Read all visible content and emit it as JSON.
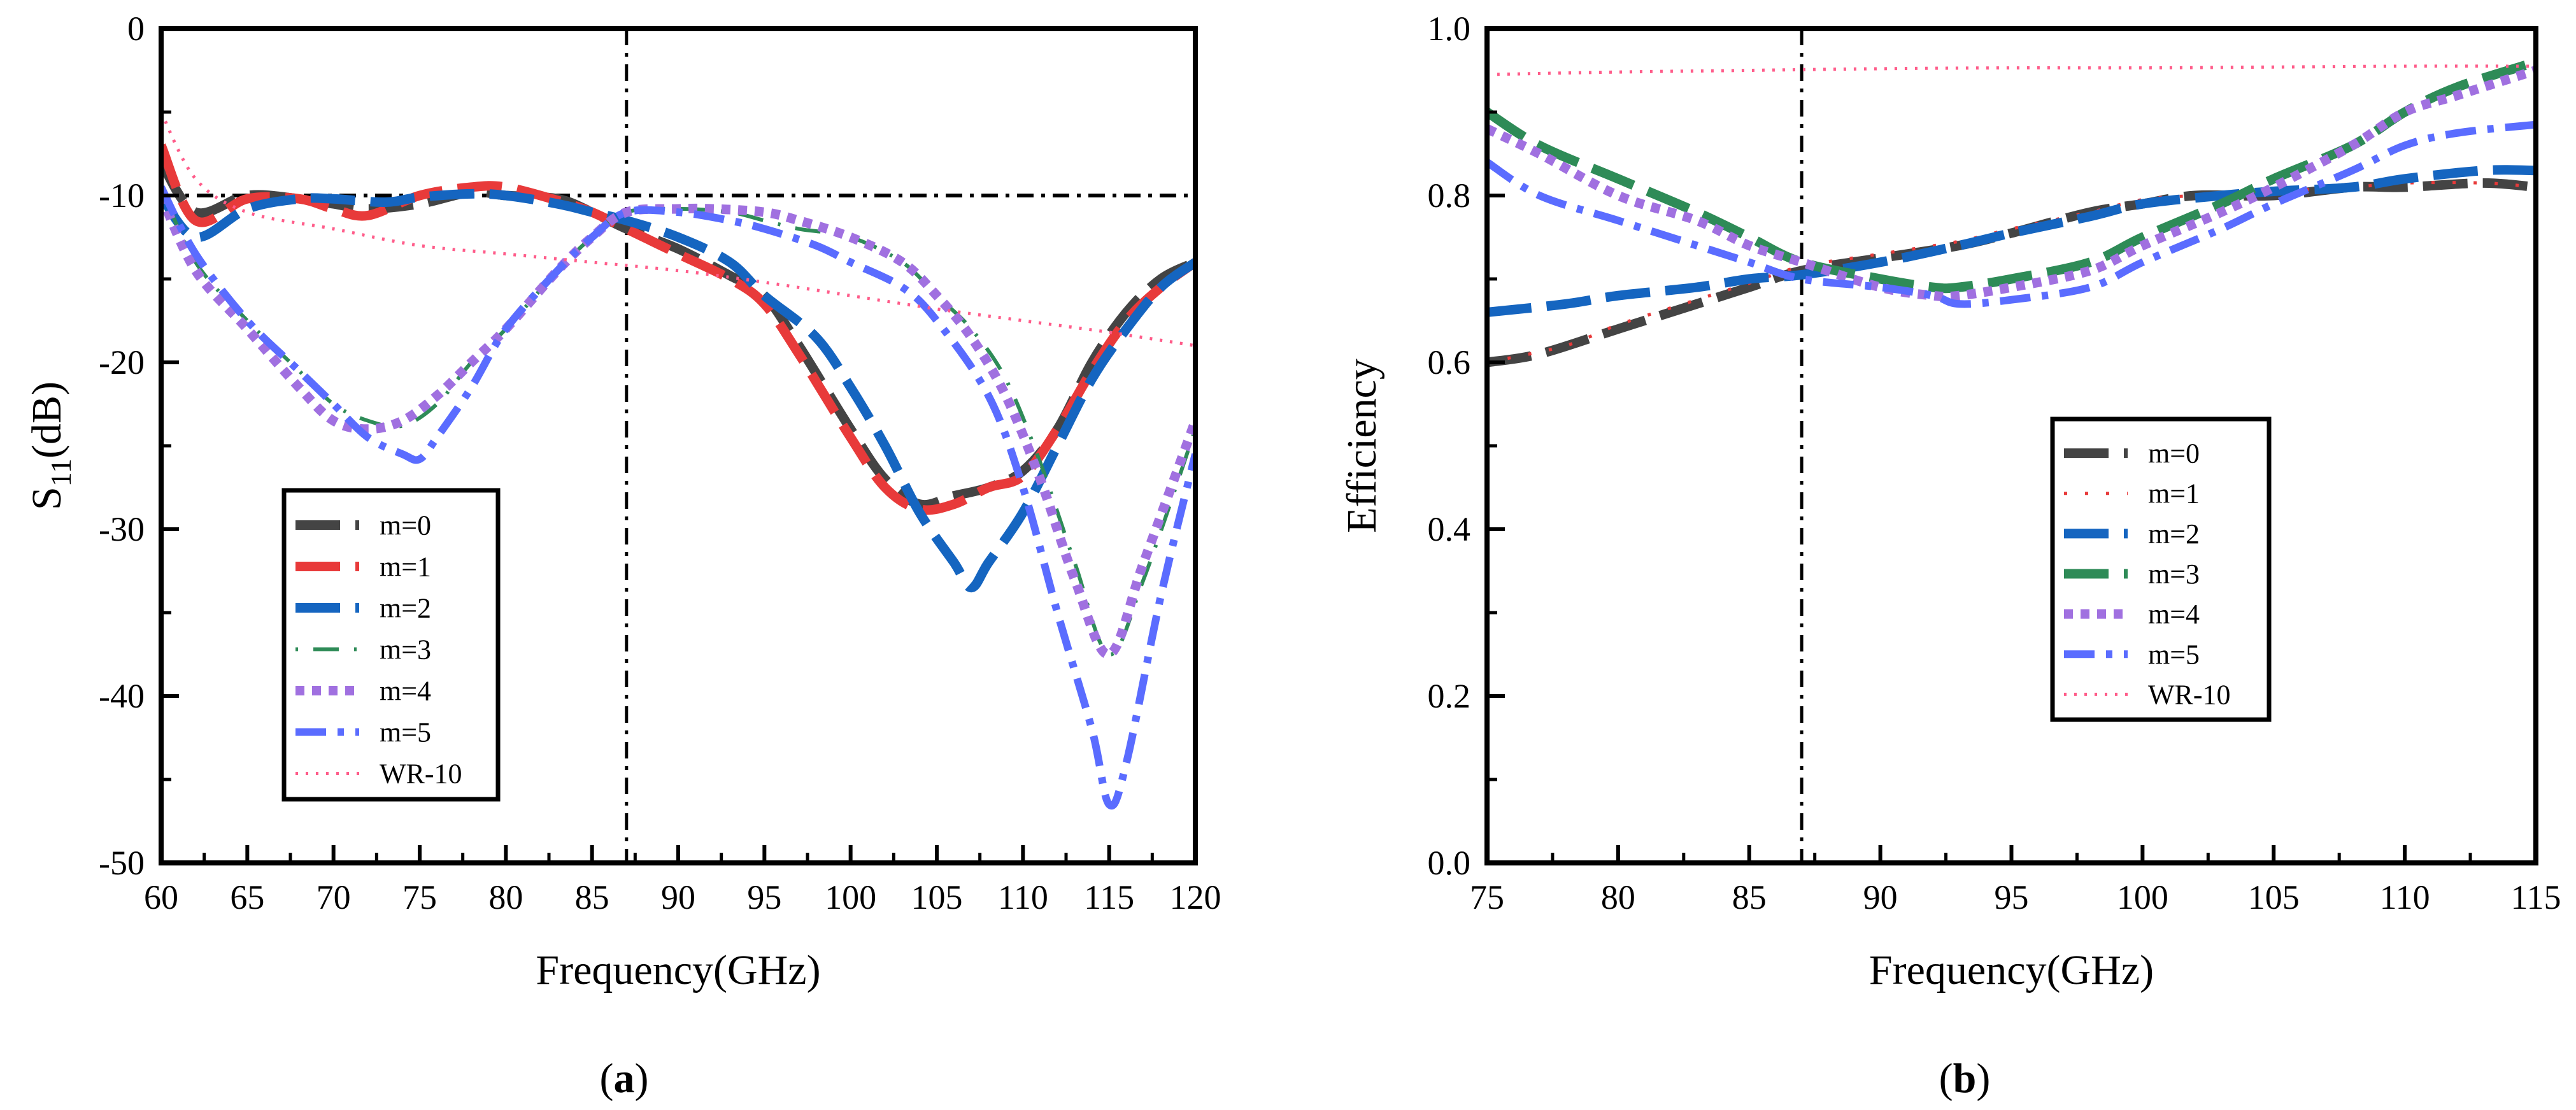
{
  "chart_data": [
    {
      "id": "a",
      "type": "line",
      "caption_open": "(",
      "caption_letter": "a",
      "caption_close": ")",
      "title": "",
      "xlabel": "Frequency(GHz)",
      "ylabel_main": "S",
      "ylabel_sub": "11",
      "ylabel_unit": "(dB)",
      "xlim": [
        60,
        120
      ],
      "ylim": [
        -50,
        0
      ],
      "xticks": [
        60,
        65,
        70,
        75,
        80,
        85,
        90,
        95,
        100,
        105,
        110,
        115,
        120
      ],
      "yticks": [
        -50,
        -40,
        -30,
        -20,
        -10,
        0
      ],
      "ref_vline": 87,
      "ref_hline": -10,
      "legend_position": "lower-left",
      "series": [
        {
          "name": "m=0",
          "color": "#444444",
          "dash": "long",
          "x": [
            60,
            62,
            65,
            68,
            70,
            72,
            75,
            78,
            80,
            83,
            85,
            87,
            90,
            93,
            95,
            97,
            100,
            102,
            104,
            106,
            108,
            110,
            112,
            114,
            116,
            118,
            120
          ],
          "y": [
            -8,
            -11,
            -10,
            -10.2,
            -10.5,
            -10.8,
            -10.5,
            -9.8,
            -10,
            -10.2,
            -11,
            -12,
            -13.2,
            -14.8,
            -16,
            -19,
            -24,
            -27,
            -28.5,
            -28,
            -27.5,
            -26.5,
            -24,
            -20,
            -17,
            -15,
            -14
          ]
        },
        {
          "name": "m=1",
          "color": "#e83a3a",
          "dash": "long",
          "x": [
            60,
            62,
            65,
            68,
            70,
            72,
            75,
            78,
            80,
            83,
            85,
            87,
            90,
            93,
            95,
            97,
            100,
            102,
            104,
            106,
            108,
            110,
            112,
            114,
            116,
            118,
            120
          ],
          "y": [
            -7,
            -11.5,
            -10.2,
            -10.2,
            -10.8,
            -11.2,
            -10,
            -9.5,
            -9.5,
            -10.3,
            -11,
            -12,
            -13.5,
            -15,
            -16.5,
            -19.5,
            -24.5,
            -27.5,
            -28.8,
            -28.5,
            -27.5,
            -26.8,
            -24,
            -20.5,
            -17.5,
            -15.5,
            -14
          ]
        },
        {
          "name": "m=2",
          "color": "#1565c0",
          "dash": "long",
          "x": [
            60,
            62,
            65,
            68,
            70,
            73,
            75,
            78,
            80,
            83,
            85,
            87,
            90,
            93,
            95,
            98,
            100,
            102,
            104,
            106,
            107,
            108,
            110,
            112,
            114,
            116,
            118,
            120
          ],
          "y": [
            -10,
            -12.5,
            -10.8,
            -10.2,
            -10.2,
            -10.4,
            -10.1,
            -9.9,
            -10,
            -10.5,
            -11,
            -11.5,
            -12.5,
            -14,
            -16,
            -18.5,
            -21.5,
            -25,
            -29,
            -32,
            -33.5,
            -32,
            -29,
            -25,
            -21,
            -18,
            -15.5,
            -14
          ]
        },
        {
          "name": "m=3",
          "color": "#2e8b57",
          "dash": "dot-dash",
          "x": [
            60,
            62,
            65,
            68,
            70,
            72,
            74,
            76,
            78,
            80,
            83,
            85,
            87,
            90,
            93,
            95,
            97,
            100,
            103,
            105,
            107,
            109,
            111,
            113,
            115,
            117,
            120
          ],
          "y": [
            -9.5,
            -14,
            -17.5,
            -20.5,
            -22.5,
            -23.5,
            -23.8,
            -22.5,
            -20,
            -18,
            -14.5,
            -12.5,
            -11,
            -10.8,
            -11,
            -11.5,
            -12,
            -12.5,
            -14,
            -16,
            -18,
            -21,
            -26,
            -32,
            -37.5,
            -33,
            -24
          ]
        },
        {
          "name": "m=4",
          "color": "#a070e0",
          "dash": "dot",
          "x": [
            60,
            62,
            65,
            68,
            70,
            72,
            74,
            76,
            78,
            80,
            83,
            85,
            87,
            90,
            92,
            95,
            97,
            100,
            103,
            105,
            107,
            109,
            111,
            113,
            115,
            117,
            120
          ],
          "y": [
            -10,
            -14.5,
            -18,
            -21.5,
            -23.5,
            -24,
            -23.5,
            -22,
            -20,
            -18,
            -14.5,
            -12.5,
            -11,
            -10.8,
            -10.8,
            -11,
            -11.5,
            -12.5,
            -14,
            -16,
            -18.5,
            -22,
            -27,
            -33,
            -37.5,
            -32,
            -23.5
          ]
        },
        {
          "name": "m=5",
          "color": "#5a6cff",
          "dash": "dash-dot",
          "x": [
            60,
            62,
            65,
            68,
            70,
            72,
            74,
            75,
            76,
            78,
            80,
            83,
            85,
            87,
            90,
            93,
            95,
            98,
            100,
            103,
            105,
            108,
            110,
            112,
            114,
            115,
            116,
            118,
            120
          ],
          "y": [
            -9.5,
            -13.5,
            -17.5,
            -20.5,
            -22.5,
            -24.5,
            -25.5,
            -25.8,
            -24.5,
            -21.5,
            -18,
            -14.5,
            -12.5,
            -11,
            -11,
            -11.5,
            -12,
            -13,
            -14,
            -15.5,
            -17.5,
            -22,
            -27.5,
            -35,
            -42,
            -46.5,
            -44,
            -34,
            -25.5
          ]
        },
        {
          "name": "WR-10",
          "color": "#ff5c8a",
          "dash": "fine-dot",
          "x": [
            60,
            62,
            65,
            70,
            75,
            80,
            85,
            90,
            95,
            100,
            105,
            110,
            115,
            120
          ],
          "y": [
            -5,
            -9,
            -11,
            -12,
            -13,
            -13.5,
            -14,
            -14.5,
            -15.2,
            -16,
            -16.8,
            -17.5,
            -18.2,
            -19
          ]
        }
      ],
      "legend": [
        "m=0",
        "m=1",
        "m=2",
        "m=3",
        "m=4",
        "m=5",
        "WR-10"
      ]
    },
    {
      "id": "b",
      "type": "line",
      "caption_open": "(",
      "caption_letter": "b",
      "caption_close": ")",
      "title": "",
      "xlabel": "Frequency(GHz)",
      "ylabel": "Efficiency",
      "xlim": [
        75,
        115
      ],
      "ylim": [
        0.0,
        1.0
      ],
      "xticks": [
        75,
        80,
        85,
        90,
        95,
        100,
        105,
        110,
        115
      ],
      "yticks": [
        0.0,
        0.2,
        0.4,
        0.6,
        0.8,
        1.0
      ],
      "ytick_labels": [
        "0.0",
        "0.2",
        "0.4",
        "0.6",
        "0.8",
        "1.0"
      ],
      "ref_vline": 87,
      "legend_position": "center-right",
      "series": [
        {
          "name": "m=0",
          "color": "#444444",
          "dash": "long",
          "x": [
            75,
            77,
            80,
            83,
            85,
            87,
            90,
            93,
            95,
            98,
            100,
            102,
            105,
            108,
            110,
            113,
            115
          ],
          "y": [
            0.6,
            0.61,
            0.64,
            0.67,
            0.69,
            0.71,
            0.725,
            0.74,
            0.755,
            0.78,
            0.79,
            0.8,
            0.8,
            0.81,
            0.81,
            0.815,
            0.81
          ]
        },
        {
          "name": "m=1",
          "color": "#e83a3a",
          "dash": "sparse",
          "x": [
            75,
            78,
            80,
            83,
            85,
            87,
            90,
            93,
            95,
            98,
            100,
            102,
            105,
            108,
            110,
            113,
            115
          ],
          "y": [
            0.6,
            0.62,
            0.645,
            0.675,
            0.695,
            0.715,
            0.73,
            0.745,
            0.76,
            0.78,
            0.795,
            0.8,
            0.805,
            0.81,
            0.815,
            0.815,
            0.81
          ]
        },
        {
          "name": "m=2",
          "color": "#1565c0",
          "dash": "long",
          "x": [
            75,
            78,
            80,
            83,
            85,
            87,
            90,
            93,
            95,
            98,
            100,
            103,
            105,
            108,
            110,
            113,
            115
          ],
          "y": [
            0.66,
            0.67,
            0.68,
            0.69,
            0.7,
            0.705,
            0.72,
            0.74,
            0.755,
            0.775,
            0.79,
            0.8,
            0.805,
            0.81,
            0.82,
            0.83,
            0.83
          ]
        },
        {
          "name": "m=3",
          "color": "#2e8b57",
          "dash": "long",
          "x": [
            75,
            77,
            80,
            83,
            85,
            87,
            90,
            92,
            93,
            95,
            98,
            100,
            103,
            105,
            108,
            110,
            112,
            115
          ],
          "y": [
            0.9,
            0.86,
            0.82,
            0.78,
            0.75,
            0.72,
            0.7,
            0.69,
            0.69,
            0.7,
            0.72,
            0.75,
            0.79,
            0.82,
            0.86,
            0.9,
            0.93,
            0.96
          ]
        },
        {
          "name": "m=4",
          "color": "#a070e0",
          "dash": "dot",
          "x": [
            75,
            77,
            80,
            83,
            85,
            87,
            90,
            92,
            93,
            95,
            98,
            100,
            103,
            105,
            108,
            110,
            112,
            115
          ],
          "y": [
            0.88,
            0.85,
            0.8,
            0.77,
            0.74,
            0.72,
            0.69,
            0.68,
            0.68,
            0.69,
            0.71,
            0.74,
            0.78,
            0.81,
            0.86,
            0.9,
            0.92,
            0.95
          ]
        },
        {
          "name": "m=5",
          "color": "#5a6cff",
          "dash": "dash-dot",
          "x": [
            75,
            77,
            80,
            83,
            85,
            87,
            90,
            92,
            93,
            95,
            98,
            100,
            103,
            105,
            108,
            110,
            112,
            115
          ],
          "y": [
            0.84,
            0.8,
            0.77,
            0.74,
            0.72,
            0.7,
            0.69,
            0.68,
            0.67,
            0.675,
            0.69,
            0.72,
            0.76,
            0.79,
            0.83,
            0.86,
            0.875,
            0.885
          ]
        },
        {
          "name": "WR-10",
          "color": "#ff5c8a",
          "dash": "fine-dot",
          "x": [
            75,
            80,
            85,
            90,
            95,
            100,
            105,
            110,
            115
          ],
          "y": [
            0.945,
            0.948,
            0.95,
            0.952,
            0.953,
            0.953,
            0.954,
            0.955,
            0.955
          ]
        }
      ],
      "legend": [
        "m=0",
        "m=1",
        "m=2",
        "m=3",
        "m=4",
        "m=5",
        "WR-10"
      ]
    }
  ]
}
